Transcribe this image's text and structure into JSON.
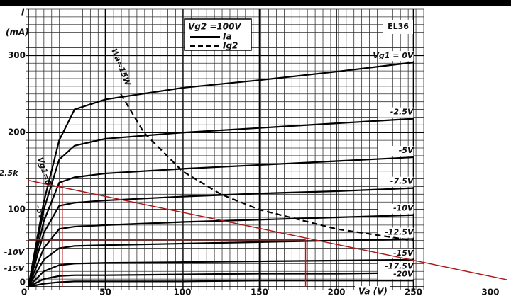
{
  "chart_data": {
    "type": "line",
    "title": "EL36",
    "y_label": "I",
    "y_unit": "(mA)",
    "x_label": "Va (V)",
    "legend_title": "Vg2 =100V",
    "legend": [
      {
        "label": "Ia",
        "style": "solid"
      },
      {
        "label": "Ig2",
        "style": "dashed"
      }
    ],
    "annotations": [
      "2.5k",
      "Vg1=0",
      "-5V",
      "-10V",
      "-15V",
      "Wa=15W"
    ],
    "xlim": [
      0,
      312
    ],
    "ylim": [
      0,
      360
    ],
    "xticks": [
      0,
      50,
      100,
      150,
      200,
      250,
      300
    ],
    "yticks": [
      0,
      100,
      200,
      300
    ],
    "grid": true,
    "series": [
      {
        "name": "Vg1 = 0V",
        "color": "#000000",
        "style": "solid",
        "x": [
          0,
          10,
          20,
          30,
          50,
          100,
          150,
          200,
          250
        ],
        "values": [
          0,
          110,
          190,
          230,
          243,
          258,
          268,
          279,
          291
        ]
      },
      {
        "name": "-2.5V",
        "color": "#000000",
        "style": "solid",
        "x": [
          0,
          10,
          20,
          30,
          50,
          100,
          150,
          200,
          250
        ],
        "values": [
          0,
          100,
          165,
          183,
          192,
          200,
          206,
          212,
          218
        ]
      },
      {
        "name": "-5V",
        "color": "#000000",
        "style": "solid",
        "x": [
          0,
          10,
          20,
          30,
          50,
          100,
          150,
          200,
          250
        ],
        "values": [
          0,
          85,
          135,
          142,
          147,
          153,
          158,
          163,
          168
        ]
      },
      {
        "name": "-7.5V",
        "color": "#000000",
        "style": "solid",
        "x": [
          0,
          10,
          20,
          30,
          50,
          100,
          150,
          200,
          250
        ],
        "values": [
          0,
          70,
          105,
          109,
          112,
          117,
          121,
          124,
          128
        ]
      },
      {
        "name": "-10V",
        "color": "#000000",
        "style": "solid",
        "x": [
          0,
          10,
          20,
          30,
          50,
          100,
          150,
          200,
          250
        ],
        "values": [
          0,
          50,
          75,
          78,
          80,
          84,
          87,
          90,
          93
        ]
      },
      {
        "name": "-12.5V",
        "color": "#000000",
        "style": "solid",
        "x": [
          0,
          10,
          20,
          30,
          50,
          100,
          150,
          200,
          250
        ],
        "values": [
          0,
          35,
          50,
          53,
          54,
          56,
          58,
          60,
          62
        ]
      },
      {
        "name": "-15V",
        "color": "#000000",
        "style": "solid",
        "x": [
          0,
          10,
          20,
          30,
          50,
          100,
          150,
          200,
          250
        ],
        "values": [
          0,
          20,
          28,
          30,
          31,
          32,
          33,
          34,
          35
        ]
      },
      {
        "name": "-17.5V",
        "color": "#000000",
        "style": "solid",
        "x": [
          0,
          10,
          20,
          30,
          50,
          100,
          150,
          200,
          250
        ],
        "values": [
          0,
          10,
          14,
          15,
          15,
          16,
          17,
          17,
          18
        ]
      },
      {
        "name": "-20V",
        "color": "#000000",
        "style": "solid",
        "x": [
          0,
          10,
          20,
          30,
          50,
          100,
          150,
          200,
          250
        ],
        "values": [
          0,
          4,
          6,
          7,
          7,
          7,
          8,
          8,
          8
        ]
      },
      {
        "color": "#000000",
        "style": "dashed",
        "x": [
          60,
          75,
          100,
          125,
          150,
          200,
          250
        ],
        "values": [
          250,
          200,
          150,
          120,
          100,
          75,
          60
        ]
      },
      {
        "color": "#b01818",
        "style": "solid",
        "x": [
          0,
          311
        ],
        "values": [
          138,
          9
        ]
      },
      {
        "color": "#b01818",
        "style": "solid",
        "x": [
          0,
          180
        ],
        "values": [
          61,
          61
        ]
      },
      {
        "color": "#b01818",
        "style": "solid",
        "x": [
          22,
          22
        ],
        "values": [
          136,
          0
        ]
      },
      {
        "color": "#b01818",
        "style": "solid",
        "x": [
          180,
          180
        ],
        "values": [
          61,
          0
        ]
      }
    ]
  }
}
